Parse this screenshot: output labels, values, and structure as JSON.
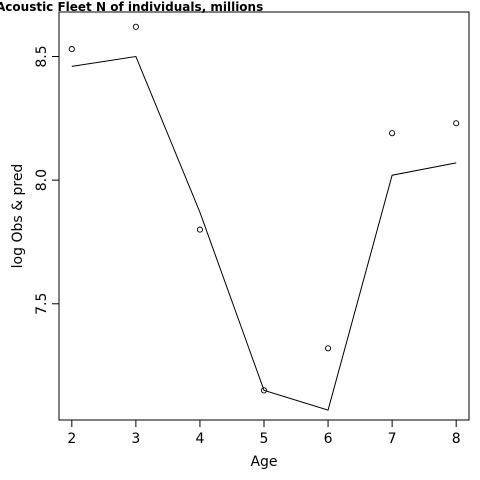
{
  "chart_data": {
    "type": "line",
    "title": "Acoustic Fleet   N of individuals, millions",
    "xlabel": "Age",
    "ylabel": "log Obs & pred",
    "xlim": [
      1.8,
      8.2
    ],
    "ylim": [
      7.03,
      8.68
    ],
    "x_ticks": [
      2,
      3,
      4,
      5,
      6,
      7,
      8
    ],
    "y_ticks": [
      7.5,
      8.0,
      8.5
    ],
    "x_tick_labels": [
      "2",
      "3",
      "4",
      "5",
      "6",
      "7",
      "8"
    ],
    "y_tick_labels": [
      "7.5",
      "8.0",
      "8.5"
    ],
    "grid": false,
    "legend": "none",
    "series": [
      {
        "kind": "points",
        "x": [
          2,
          3,
          4,
          5,
          6,
          7,
          8
        ],
        "y": [
          8.53,
          8.62,
          7.8,
          7.15,
          7.32,
          8.19,
          8.23
        ]
      },
      {
        "kind": "line",
        "x": [
          2,
          3,
          4,
          5,
          6,
          7,
          8
        ],
        "y": [
          8.46,
          8.5,
          7.87,
          7.15,
          7.07,
          8.02,
          8.07
        ]
      }
    ]
  }
}
